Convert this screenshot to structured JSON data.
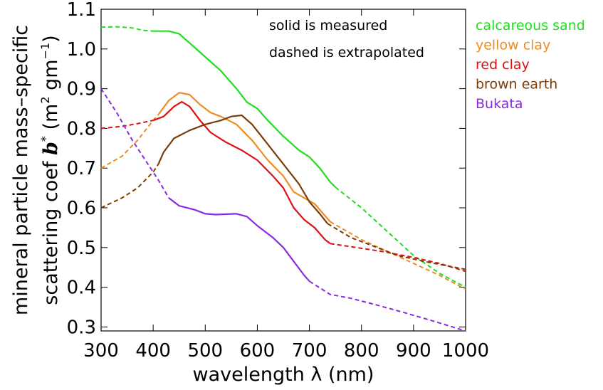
{
  "chart_data": {
    "type": "line",
    "xlabel": "wavelength λ (nm)",
    "ylabel_line1": "mineral particle mass–specific",
    "ylabel_line2_prefix": "scattering coef",
    "ylabel_symbol": "b",
    "ylabel_symbol_sup": "*",
    "ylabel_units_open": "(m",
    "ylabel_units_sup1": "2",
    "ylabel_units_mid": " gm",
    "ylabel_units_sup2": "−1",
    "ylabel_units_close": ")",
    "xlim": [
      300,
      1000
    ],
    "ylim": [
      0.29,
      1.1
    ],
    "xticks": [
      300,
      400,
      500,
      600,
      700,
      800,
      900,
      1000
    ],
    "xtick_labels": [
      "300",
      "400",
      "500",
      "600",
      "700",
      "800",
      "900",
      "1000"
    ],
    "yticks": [
      0.3,
      0.4,
      0.5,
      0.6,
      0.7,
      0.8,
      0.9,
      1.0,
      1.1
    ],
    "ytick_labels": [
      "0.3",
      "0.4",
      "0.5",
      "0.6",
      "0.7",
      "0.8",
      "0.9",
      "1.0",
      "1.1"
    ],
    "grid": false,
    "legend_position": "outside-right-top",
    "annotations": [
      "solid is measured",
      "dashed is extrapolated"
    ],
    "series": [
      {
        "name": "calcareous sand",
        "color": "#22dd22",
        "dashed_before": [
          [
            300,
            1.055
          ],
          [
            330,
            1.056
          ],
          [
            360,
            1.053
          ],
          [
            380,
            1.047
          ],
          [
            400,
            1.045
          ]
        ],
        "solid": [
          [
            400,
            1.045
          ],
          [
            430,
            1.045
          ],
          [
            450,
            1.038
          ],
          [
            470,
            1.015
          ],
          [
            500,
            0.98
          ],
          [
            530,
            0.945
          ],
          [
            560,
            0.9
          ],
          [
            580,
            0.866
          ],
          [
            600,
            0.85
          ],
          [
            620,
            0.82
          ],
          [
            650,
            0.78
          ],
          [
            680,
            0.745
          ],
          [
            700,
            0.728
          ],
          [
            720,
            0.7
          ],
          [
            740,
            0.665
          ],
          [
            750,
            0.652
          ]
        ],
        "dashed_after": [
          [
            750,
            0.652
          ],
          [
            800,
            0.6
          ],
          [
            850,
            0.54
          ],
          [
            900,
            0.48
          ],
          [
            950,
            0.435
          ],
          [
            1000,
            0.4
          ]
        ]
      },
      {
        "name": "yellow clay",
        "color": "#ee8c22",
        "dashed_before": [
          [
            300,
            0.7
          ],
          [
            340,
            0.73
          ],
          [
            370,
            0.77
          ],
          [
            400,
            0.82
          ],
          [
            410,
            0.835
          ]
        ],
        "solid": [
          [
            410,
            0.835
          ],
          [
            430,
            0.87
          ],
          [
            450,
            0.89
          ],
          [
            470,
            0.885
          ],
          [
            490,
            0.86
          ],
          [
            510,
            0.84
          ],
          [
            530,
            0.83
          ],
          [
            560,
            0.81
          ],
          [
            590,
            0.77
          ],
          [
            620,
            0.72
          ],
          [
            650,
            0.68
          ],
          [
            670,
            0.64
          ],
          [
            690,
            0.625
          ],
          [
            710,
            0.61
          ],
          [
            730,
            0.58
          ],
          [
            740,
            0.565
          ]
        ],
        "dashed_after": [
          [
            740,
            0.565
          ],
          [
            800,
            0.52
          ],
          [
            850,
            0.49
          ],
          [
            900,
            0.46
          ],
          [
            950,
            0.43
          ],
          [
            1000,
            0.395
          ]
        ]
      },
      {
        "name": "red clay",
        "color": "#dd1111",
        "dashed_before": [
          [
            300,
            0.8
          ],
          [
            340,
            0.805
          ],
          [
            370,
            0.812
          ],
          [
            400,
            0.82
          ]
        ],
        "solid": [
          [
            400,
            0.82
          ],
          [
            420,
            0.83
          ],
          [
            440,
            0.855
          ],
          [
            455,
            0.867
          ],
          [
            470,
            0.855
          ],
          [
            490,
            0.82
          ],
          [
            510,
            0.79
          ],
          [
            540,
            0.765
          ],
          [
            570,
            0.745
          ],
          [
            600,
            0.72
          ],
          [
            630,
            0.68
          ],
          [
            650,
            0.65
          ],
          [
            670,
            0.6
          ],
          [
            690,
            0.57
          ],
          [
            710,
            0.55
          ],
          [
            730,
            0.52
          ],
          [
            740,
            0.51
          ]
        ],
        "dashed_after": [
          [
            740,
            0.51
          ],
          [
            790,
            0.5
          ],
          [
            840,
            0.49
          ],
          [
            900,
            0.475
          ],
          [
            950,
            0.46
          ],
          [
            1000,
            0.44
          ]
        ]
      },
      {
        "name": "brown earth",
        "color": "#7a3d0a",
        "dashed_before": [
          [
            300,
            0.6
          ],
          [
            340,
            0.625
          ],
          [
            370,
            0.65
          ],
          [
            400,
            0.69
          ],
          [
            410,
            0.71
          ]
        ],
        "solid": [
          [
            410,
            0.71
          ],
          [
            420,
            0.74
          ],
          [
            440,
            0.775
          ],
          [
            470,
            0.795
          ],
          [
            500,
            0.81
          ],
          [
            530,
            0.82
          ],
          [
            550,
            0.83
          ],
          [
            570,
            0.833
          ],
          [
            590,
            0.81
          ],
          [
            620,
            0.76
          ],
          [
            650,
            0.71
          ],
          [
            680,
            0.66
          ],
          [
            700,
            0.615
          ],
          [
            720,
            0.585
          ],
          [
            735,
            0.56
          ]
        ],
        "dashed_after": [
          [
            735,
            0.56
          ],
          [
            780,
            0.525
          ],
          [
            820,
            0.505
          ],
          [
            870,
            0.48
          ],
          [
            920,
            0.465
          ],
          [
            960,
            0.455
          ],
          [
            1000,
            0.445
          ]
        ]
      },
      {
        "name": "Bukata",
        "color": "#8a2be2",
        "dashed_before": [
          [
            300,
            0.9
          ],
          [
            330,
            0.84
          ],
          [
            360,
            0.77
          ],
          [
            390,
            0.71
          ],
          [
            410,
            0.67
          ],
          [
            430,
            0.625
          ]
        ],
        "solid": [
          [
            430,
            0.625
          ],
          [
            450,
            0.605
          ],
          [
            480,
            0.595
          ],
          [
            500,
            0.585
          ],
          [
            520,
            0.583
          ],
          [
            560,
            0.585
          ],
          [
            580,
            0.578
          ],
          [
            600,
            0.555
          ],
          [
            630,
            0.525
          ],
          [
            650,
            0.5
          ],
          [
            670,
            0.465
          ],
          [
            690,
            0.43
          ],
          [
            700,
            0.415
          ]
        ],
        "dashed_after": [
          [
            700,
            0.415
          ],
          [
            740,
            0.382
          ],
          [
            780,
            0.372
          ],
          [
            830,
            0.355
          ],
          [
            880,
            0.337
          ],
          [
            930,
            0.318
          ],
          [
            1000,
            0.29
          ]
        ]
      }
    ]
  }
}
